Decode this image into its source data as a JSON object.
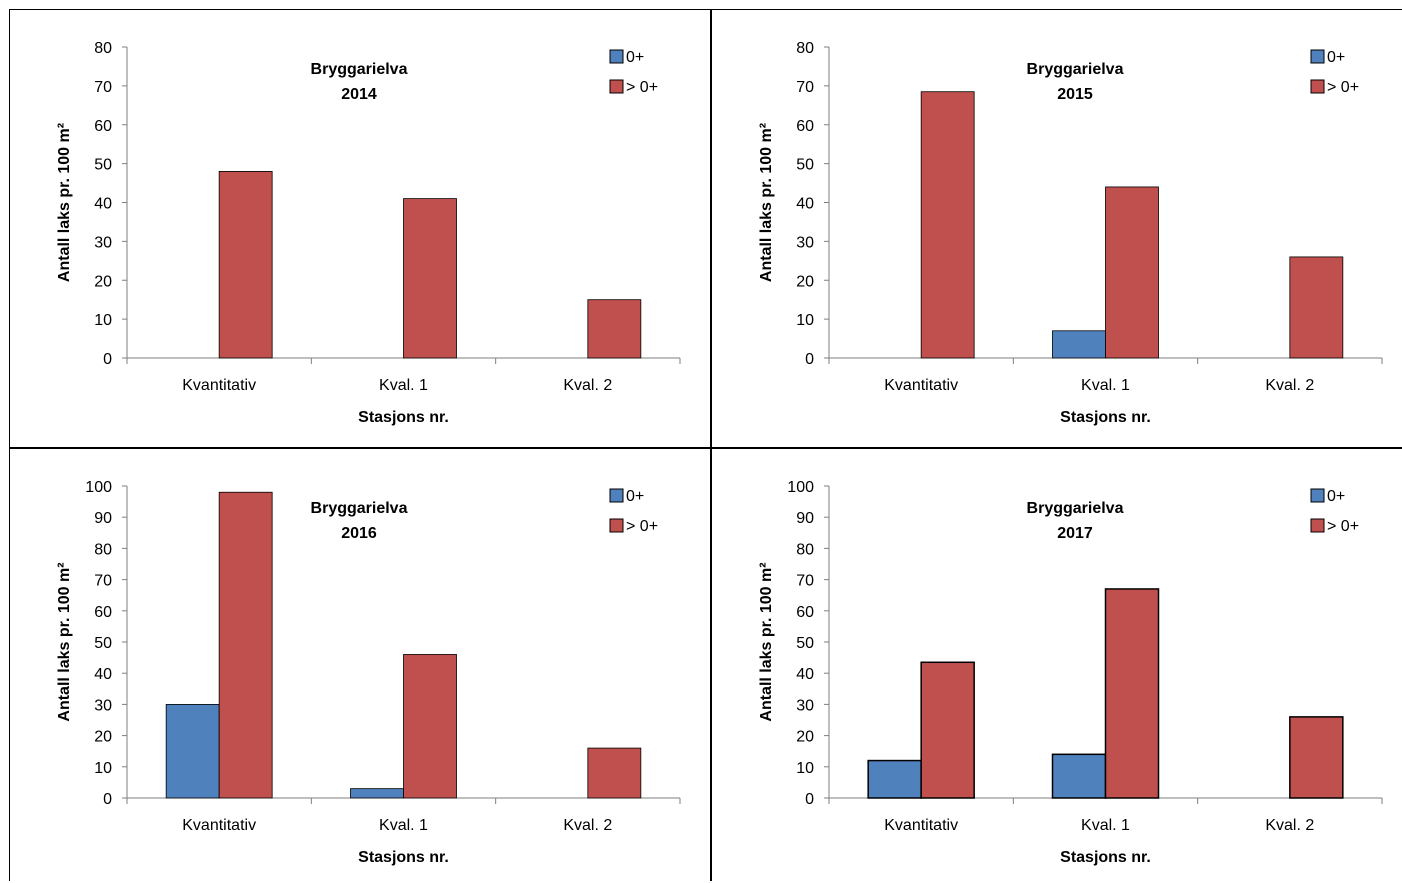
{
  "colors": {
    "zero_plus": "#4F81BD",
    "older": "#C0504D",
    "axis": "#7f7f7f",
    "frame": "#000000"
  },
  "chart_data": [
    {
      "type": "bar",
      "title": "Bryggarielva",
      "subtitle": "2014",
      "xlabel": "Stasjons nr.",
      "ylabel": "Antall laks pr. 100 m²",
      "ylim": [
        0,
        80
      ],
      "yticks": [
        0,
        10,
        20,
        30,
        40,
        50,
        60,
        70,
        80
      ],
      "legend_position": "top-right",
      "categories": [
        "Kvantitativ",
        "Kval. 1",
        "Kval. 2"
      ],
      "series": [
        {
          "name": "0+",
          "color": "#4F81BD",
          "values": [
            0,
            0,
            0
          ]
        },
        {
          "name": "> 0+",
          "color": "#C0504D",
          "values": [
            48,
            41,
            15
          ]
        }
      ]
    },
    {
      "type": "bar",
      "title": "Bryggarielva",
      "subtitle": "2015",
      "xlabel": "Stasjons nr.",
      "ylabel": "Antall laks pr. 100 m²",
      "ylim": [
        0,
        80
      ],
      "yticks": [
        0,
        10,
        20,
        30,
        40,
        50,
        60,
        70,
        80
      ],
      "legend_position": "top-right",
      "categories": [
        "Kvantitativ",
        "Kval. 1",
        "Kval. 2"
      ],
      "series": [
        {
          "name": "0+",
          "color": "#4F81BD",
          "values": [
            0,
            7,
            0
          ]
        },
        {
          "name": "> 0+",
          "color": "#C0504D",
          "values": [
            68.5,
            44,
            26
          ]
        }
      ]
    },
    {
      "type": "bar",
      "title": "Bryggarielva",
      "subtitle": "2016",
      "xlabel": "Stasjons nr.",
      "ylabel": "Antall laks pr. 100 m²",
      "ylim": [
        0,
        100
      ],
      "yticks": [
        0,
        10,
        20,
        30,
        40,
        50,
        60,
        70,
        80,
        90,
        100
      ],
      "legend_position": "top-right",
      "categories": [
        "Kvantitativ",
        "Kval. 1",
        "Kval. 2"
      ],
      "series": [
        {
          "name": "0+",
          "color": "#4F81BD",
          "values": [
            30,
            3,
            0
          ]
        },
        {
          "name": "> 0+",
          "color": "#C0504D",
          "values": [
            98,
            46,
            16
          ]
        }
      ]
    },
    {
      "type": "bar",
      "title": "Bryggarielva",
      "subtitle": "2017",
      "xlabel": "Stasjons nr.",
      "ylabel": "Antall laks pr. 100 m²",
      "ylim": [
        0,
        100
      ],
      "yticks": [
        0,
        10,
        20,
        30,
        40,
        50,
        60,
        70,
        80,
        90,
        100
      ],
      "legend_position": "top-right",
      "categories": [
        "Kvantitativ",
        "Kval. 1",
        "Kval. 2"
      ],
      "series": [
        {
          "name": "0+",
          "color": "#4F81BD",
          "values": [
            12,
            14,
            0
          ]
        },
        {
          "name": "> 0+",
          "color": "#C0504D",
          "values": [
            43.5,
            67,
            26
          ]
        }
      ]
    }
  ]
}
